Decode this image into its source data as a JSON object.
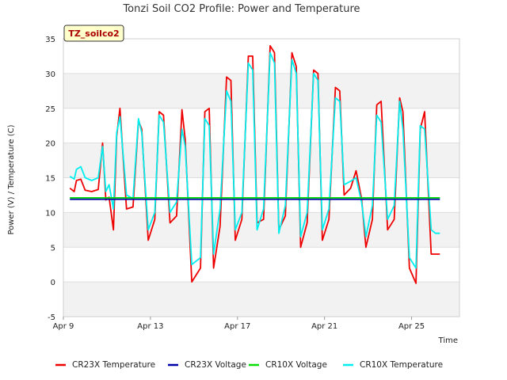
{
  "chart_data": {
    "type": "line",
    "title": "Tonzi Soil CO2 Profile: Power and Temperature",
    "site_badge": "TZ_soilco2",
    "xlabel": "Time",
    "ylabel": "Power (V) / Temperature (C)",
    "xlim": [
      "Apr 9",
      "Apr 27"
    ],
    "ylim": [
      -5,
      35
    ],
    "yticks": [
      -5,
      0,
      5,
      10,
      15,
      20,
      25,
      30,
      35
    ],
    "xticks": [
      "Apr 9",
      "Apr 13",
      "Apr 17",
      "Apr 21",
      "Apr 25"
    ],
    "grid": true,
    "legend_position": "bottom",
    "x_unit": "day of April",
    "series": [
      {
        "name": "CR23X Temperature",
        "color": "#ee0000",
        "x": [
          9.3,
          9.5,
          9.6,
          9.8,
          10.0,
          10.3,
          10.6,
          10.8,
          10.95,
          11.1,
          11.3,
          11.45,
          11.6,
          11.9,
          12.2,
          12.45,
          12.6,
          12.9,
          13.2,
          13.4,
          13.6,
          13.9,
          14.2,
          14.45,
          14.6,
          14.9,
          15.3,
          15.5,
          15.7,
          15.9,
          16.2,
          16.5,
          16.7,
          16.9,
          17.2,
          17.5,
          17.7,
          17.9,
          18.2,
          18.5,
          18.7,
          18.9,
          19.2,
          19.5,
          19.7,
          19.9,
          20.2,
          20.5,
          20.7,
          20.9,
          21.2,
          21.5,
          21.7,
          21.9,
          22.2,
          22.45,
          22.7,
          22.9,
          23.2,
          23.4,
          23.6,
          23.9,
          24.2,
          24.45,
          24.6,
          24.9,
          25.2,
          25.4,
          25.6,
          25.9,
          26.1,
          26.3
        ],
        "values": [
          13.5,
          13.0,
          14.6,
          14.8,
          13.2,
          13.0,
          13.3,
          20.0,
          11.8,
          12.2,
          7.5,
          21.0,
          25.0,
          10.5,
          10.8,
          23.2,
          22.0,
          6.0,
          9.0,
          24.5,
          24.0,
          8.5,
          9.5,
          24.8,
          20.5,
          0.0,
          2.0,
          24.5,
          25.0,
          2.0,
          8.0,
          29.5,
          29.0,
          6.0,
          9.0,
          32.5,
          32.5,
          8.5,
          9.0,
          34.0,
          33.0,
          7.5,
          9.5,
          33.0,
          31.0,
          5.0,
          8.5,
          30.5,
          30.0,
          6.0,
          9.0,
          28.0,
          27.5,
          12.5,
          13.5,
          16.0,
          12.0,
          5.0,
          9.0,
          25.5,
          26.0,
          7.5,
          9.0,
          26.5,
          24.5,
          2.0,
          -0.2,
          22.0,
          24.5,
          4.0,
          4.0,
          4.0
        ]
      },
      {
        "name": "CR23X Voltage",
        "color": "#0000aa",
        "x": [
          9.3,
          26.3
        ],
        "values": [
          11.9,
          11.9
        ]
      },
      {
        "name": "CR10X Voltage",
        "color": "#00dd00",
        "x": [
          9.3,
          26.3
        ],
        "values": [
          12.1,
          12.1
        ]
      },
      {
        "name": "CR10X Temperature",
        "color": "#00eeee",
        "x": [
          9.3,
          9.5,
          9.6,
          9.8,
          10.0,
          10.3,
          10.6,
          10.8,
          10.95,
          11.1,
          11.3,
          11.45,
          11.6,
          11.9,
          12.2,
          12.45,
          12.6,
          12.9,
          13.2,
          13.4,
          13.6,
          13.9,
          14.2,
          14.45,
          14.6,
          14.9,
          15.3,
          15.5,
          15.7,
          15.9,
          16.2,
          16.5,
          16.7,
          16.9,
          17.2,
          17.5,
          17.7,
          17.9,
          18.2,
          18.5,
          18.7,
          18.9,
          19.2,
          19.5,
          19.7,
          19.9,
          20.2,
          20.5,
          20.7,
          20.9,
          21.2,
          21.5,
          21.7,
          21.9,
          22.2,
          22.45,
          22.7,
          22.9,
          23.2,
          23.4,
          23.6,
          23.9,
          24.2,
          24.45,
          24.6,
          24.9,
          25.2,
          25.4,
          25.6,
          25.9,
          26.1,
          26.3
        ],
        "values": [
          15.2,
          14.8,
          16.2,
          16.6,
          15.0,
          14.6,
          15.0,
          19.5,
          13.0,
          14.0,
          10.5,
          21.5,
          23.8,
          12.5,
          12.0,
          23.5,
          21.5,
          7.5,
          10.0,
          24.0,
          23.0,
          10.0,
          11.5,
          22.0,
          19.5,
          2.5,
          3.5,
          23.5,
          22.5,
          4.0,
          10.5,
          27.5,
          26.0,
          7.5,
          10.0,
          31.5,
          30.5,
          7.5,
          10.5,
          33.0,
          31.5,
          7.0,
          11.0,
          32.0,
          30.0,
          6.5,
          10.0,
          30.0,
          29.0,
          7.5,
          10.5,
          26.5,
          26.0,
          14.0,
          14.5,
          15.0,
          11.5,
          6.5,
          11.0,
          24.0,
          23.0,
          9.0,
          11.0,
          26.0,
          22.0,
          3.5,
          2.0,
          22.5,
          22.0,
          7.5,
          7.0,
          7.0
        ]
      }
    ]
  }
}
